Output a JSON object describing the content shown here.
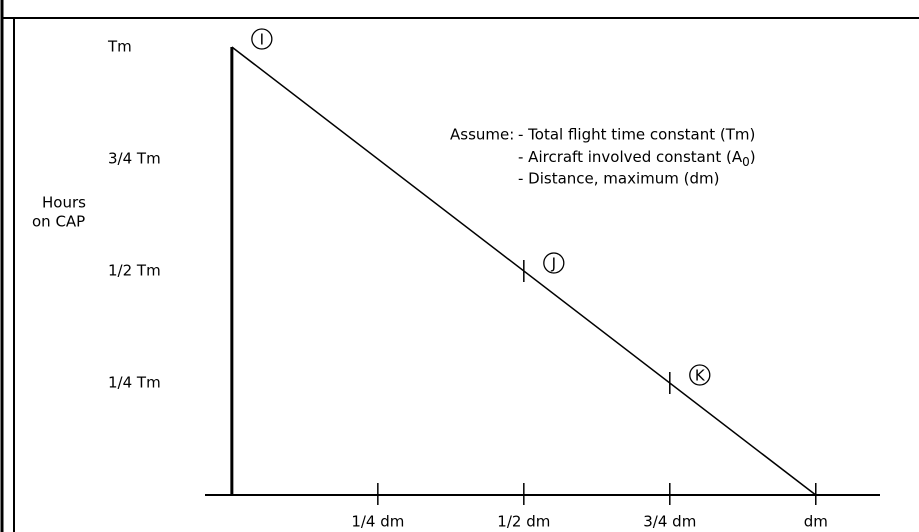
{
  "chart_data": {
    "type": "line",
    "x": [
      0,
      1
    ],
    "series": [
      {
        "color": "#000000",
        "values": [
          1,
          0
        ]
      }
    ],
    "xlim": [
      -0.046,
      1.11
    ],
    "ylim": [
      0,
      1
    ],
    "xticks": [
      {
        "value": 0.25,
        "label": "1/4 dm"
      },
      {
        "value": 0.5,
        "label": "1/2 dm"
      },
      {
        "value": 0.75,
        "label": "3/4 dm"
      },
      {
        "value": 1,
        "label": "dm"
      }
    ],
    "yticks": [
      {
        "value": 0.25,
        "label": "1/4 Tm"
      },
      {
        "value": 0.5,
        "label": "1/2 Tm"
      },
      {
        "value": 0.75,
        "label": "3/4 Tm"
      },
      {
        "value": 1,
        "label": "Tm"
      }
    ],
    "y_label": [
      "Hours",
      "on CAP"
    ],
    "point_labels": [
      {
        "label": "I",
        "x": 0,
        "y": 1
      },
      {
        "label": "J",
        "x": 0.5,
        "y": 0.5
      },
      {
        "label": "K",
        "x": 0.75,
        "y": 0.25
      }
    ],
    "annotation": {
      "heading": "Assume:",
      "lines": [
        "- Total flight time constant (Tm)",
        "- Aircraft involved constant (A",
        "- Distance, maximum  (dm)"
      ],
      "subscript": "0",
      "close": ")"
    }
  }
}
